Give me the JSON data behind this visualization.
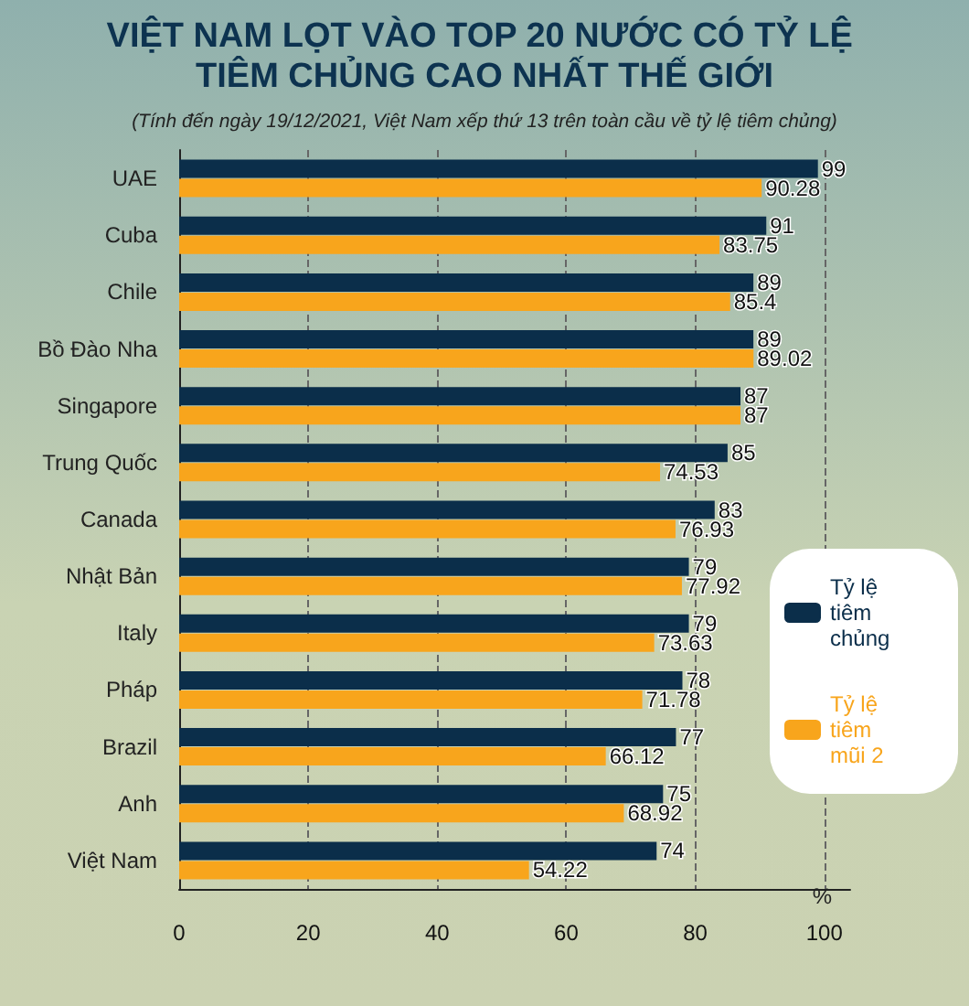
{
  "chart_data": {
    "type": "bar",
    "orientation": "horizontal",
    "title": "VIỆT NAM LỌT VÀO TOP 20 NƯỚC CÓ TỶ LỆ TIÊM CHỦNG CAO NHẤT THẾ GIỚI",
    "subtitle": "(Tính đến ngày 19/12/2021, Việt Nam xếp thứ 13 trên toàn cầu về tỷ lệ tiêm chủng)",
    "xlabel": "%",
    "categories": [
      "UAE",
      "Cuba",
      "Chile",
      "Bồ Đào Nha",
      "Singapore",
      "Trung Quốc",
      "Canada",
      "Nhật Bản",
      "Italy",
      "Pháp",
      "Brazil",
      "Anh",
      "Việt Nam"
    ],
    "series": [
      {
        "name": "Tỷ lệ tiêm chủng",
        "color": "#0b2e4a",
        "values": [
          99,
          91,
          89,
          89,
          87,
          85,
          83,
          79,
          79,
          78,
          77,
          75,
          74
        ]
      },
      {
        "name": "Tỷ lệ tiêm mũi 2",
        "color": "#f8a51c",
        "values": [
          90.28,
          83.75,
          85.4,
          89.02,
          87,
          74.53,
          76.93,
          77.92,
          73.63,
          71.78,
          66.12,
          68.92,
          54.22
        ]
      }
    ],
    "xlim": [
      0,
      104
    ],
    "xticks": [
      0,
      20,
      40,
      60,
      80,
      100
    ],
    "grid": "x",
    "legend": "right",
    "data_labels": true
  }
}
